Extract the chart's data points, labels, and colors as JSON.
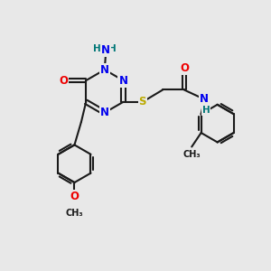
{
  "bg_color": "#e8e8e8",
  "bond_color": "#1a1a1a",
  "bond_width": 1.5,
  "atom_colors": {
    "N": "#0000ee",
    "O": "#ee0000",
    "S": "#bbaa00",
    "C": "#1a1a1a",
    "H": "#007777"
  },
  "font_size": 8.5,
  "xlim": [
    0,
    10
  ],
  "ylim": [
    0,
    10
  ]
}
